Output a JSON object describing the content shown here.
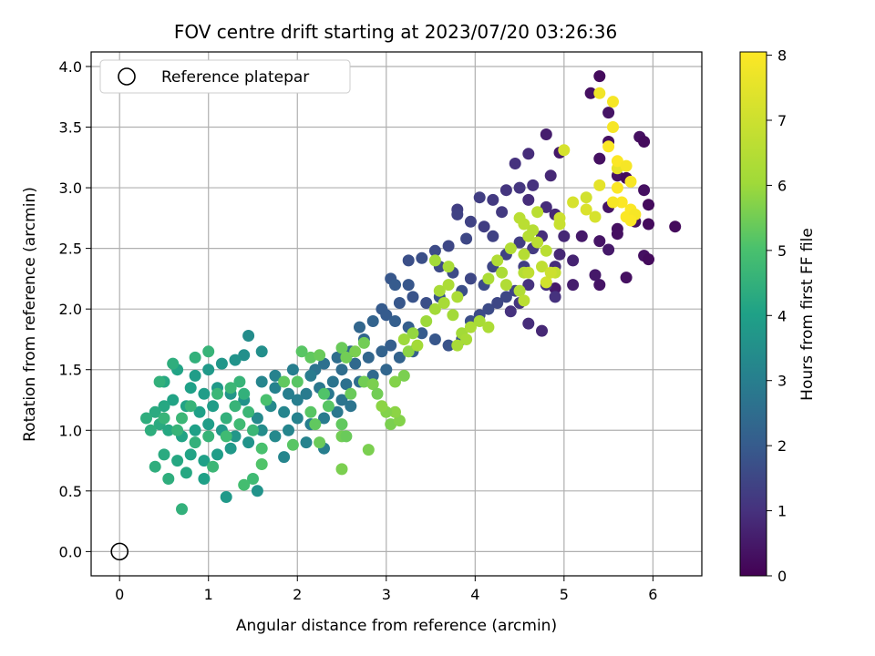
{
  "chart_data": {
    "type": "scatter",
    "title": "FOV centre drift starting at 2023/07/20 03:26:36",
    "xlabel": "Angular distance from reference (arcmin)",
    "ylabel": "Rotation from reference (arcmin)",
    "xlim": [
      -0.32,
      6.55
    ],
    "ylim": [
      -0.2,
      4.12
    ],
    "xticks": [
      "0",
      "1",
      "2",
      "3",
      "4",
      "5",
      "6"
    ],
    "yticks": [
      "0.0",
      "0.5",
      "1.0",
      "1.5",
      "2.0",
      "2.5",
      "3.0",
      "3.5",
      "4.0"
    ],
    "grid": true,
    "legend": {
      "placement": "top-left",
      "entries": [
        "Reference platepar"
      ]
    },
    "reference_point": {
      "x": 0,
      "y": 0
    },
    "colorbar": {
      "label": "Hours from first FF file",
      "colormap": "viridis",
      "range": [
        0,
        8.05
      ],
      "ticks": [
        "0",
        "1",
        "2",
        "3",
        "4",
        "5",
        "6",
        "7",
        "8"
      ]
    },
    "points": [
      [
        5.4,
        3.92,
        0.2
      ],
      [
        5.3,
        3.78,
        0.3
      ],
      [
        5.5,
        3.62,
        0.4
      ],
      [
        5.85,
        3.42,
        0.3
      ],
      [
        5.9,
        3.38,
        0.2
      ],
      [
        4.8,
        3.44,
        0.6
      ],
      [
        5.5,
        3.38,
        0.3
      ],
      [
        4.95,
        3.29,
        0.5
      ],
      [
        5.6,
        3.1,
        0.4
      ],
      [
        5.4,
        3.24,
        0.3
      ],
      [
        5.7,
        3.08,
        0.2
      ],
      [
        5.9,
        2.98,
        0.3
      ],
      [
        5.95,
        2.86,
        0.2
      ],
      [
        5.5,
        2.84,
        0.4
      ],
      [
        5.8,
        2.72,
        0.3
      ],
      [
        5.95,
        2.7,
        0.2
      ],
      [
        6.25,
        2.68,
        0.2
      ],
      [
        5.6,
        2.66,
        0.3
      ],
      [
        5.2,
        2.6,
        0.5
      ],
      [
        5.4,
        2.56,
        0.4
      ],
      [
        5.6,
        2.62,
        0.3
      ],
      [
        5.5,
        2.49,
        0.5
      ],
      [
        5.9,
        2.44,
        0.3
      ],
      [
        5.95,
        2.41,
        0.2
      ],
      [
        5.7,
        2.26,
        0.3
      ],
      [
        5.4,
        2.2,
        0.4
      ],
      [
        5.35,
        2.28,
        0.5
      ],
      [
        5.1,
        2.2,
        0.6
      ],
      [
        4.9,
        2.17,
        0.5
      ],
      [
        4.6,
        3.28,
        0.9
      ],
      [
        4.85,
        3.1,
        0.8
      ],
      [
        4.65,
        3.02,
        1.0
      ],
      [
        4.45,
        3.2,
        1.0
      ],
      [
        4.5,
        3.0,
        1.1
      ],
      [
        4.35,
        2.98,
        1.1
      ],
      [
        4.2,
        2.9,
        1.2
      ],
      [
        4.05,
        2.92,
        1.3
      ],
      [
        3.8,
        2.82,
        1.3
      ],
      [
        4.3,
        2.8,
        1.2
      ],
      [
        4.6,
        2.9,
        0.9
      ],
      [
        4.8,
        2.84,
        0.9
      ],
      [
        4.9,
        2.78,
        0.8
      ],
      [
        4.75,
        2.6,
        0.9
      ],
      [
        5.0,
        2.6,
        0.8
      ],
      [
        4.95,
        2.45,
        0.8
      ],
      [
        5.1,
        2.4,
        0.7
      ],
      [
        4.9,
        2.35,
        0.9
      ],
      [
        4.8,
        2.2,
        1.0
      ],
      [
        4.9,
        2.1,
        1.0
      ],
      [
        4.6,
        2.2,
        1.0
      ],
      [
        4.5,
        2.05,
        1.1
      ],
      [
        4.4,
        1.98,
        1.0
      ],
      [
        4.6,
        1.88,
        0.9
      ],
      [
        4.75,
        1.82,
        0.8
      ],
      [
        3.8,
        2.78,
        1.4
      ],
      [
        3.95,
        2.72,
        1.4
      ],
      [
        4.1,
        2.68,
        1.3
      ],
      [
        4.2,
        2.6,
        1.4
      ],
      [
        3.9,
        2.58,
        1.5
      ],
      [
        3.7,
        2.52,
        1.5
      ],
      [
        3.55,
        2.48,
        1.6
      ],
      [
        3.4,
        2.42,
        1.7
      ],
      [
        3.25,
        2.4,
        1.7
      ],
      [
        3.6,
        2.35,
        1.6
      ],
      [
        3.75,
        2.3,
        1.6
      ],
      [
        3.95,
        2.25,
        1.5
      ],
      [
        4.1,
        2.2,
        1.6
      ],
      [
        3.85,
        2.15,
        1.7
      ],
      [
        3.6,
        2.1,
        1.8
      ],
      [
        3.45,
        2.05,
        1.7
      ],
      [
        3.3,
        2.1,
        1.8
      ],
      [
        3.15,
        2.05,
        1.9
      ],
      [
        3.05,
        2.25,
        1.9
      ],
      [
        3.1,
        2.2,
        2.0
      ],
      [
        3.25,
        2.2,
        1.9
      ],
      [
        2.95,
        2.0,
        2.0
      ],
      [
        3.0,
        1.95,
        2.0
      ],
      [
        3.1,
        1.9,
        2.1
      ],
      [
        3.25,
        1.85,
        2.1
      ],
      [
        3.4,
        1.8,
        2.0
      ],
      [
        3.55,
        1.75,
        1.9
      ],
      [
        3.7,
        1.7,
        1.8
      ],
      [
        3.85,
        1.75,
        1.8
      ],
      [
        3.95,
        1.9,
        1.7
      ],
      [
        4.05,
        1.95,
        1.6
      ],
      [
        4.15,
        2.0,
        1.6
      ],
      [
        4.25,
        2.05,
        1.5
      ],
      [
        4.35,
        2.1,
        1.5
      ],
      [
        4.45,
        2.15,
        1.4
      ],
      [
        4.2,
        2.35,
        1.5
      ],
      [
        4.35,
        2.45,
        1.4
      ],
      [
        4.5,
        2.55,
        1.3
      ],
      [
        4.65,
        2.5,
        1.2
      ],
      [
        4.55,
        2.35,
        1.3
      ],
      [
        2.85,
        1.9,
        2.2
      ],
      [
        2.7,
        1.85,
        2.3
      ],
      [
        2.75,
        1.75,
        2.3
      ],
      [
        2.6,
        1.65,
        2.4
      ],
      [
        2.45,
        1.6,
        2.5
      ],
      [
        2.3,
        1.55,
        2.6
      ],
      [
        2.2,
        1.5,
        2.7
      ],
      [
        2.5,
        1.5,
        2.5
      ],
      [
        2.65,
        1.55,
        2.4
      ],
      [
        2.8,
        1.6,
        2.3
      ],
      [
        2.95,
        1.65,
        2.2
      ],
      [
        3.05,
        1.7,
        2.1
      ],
      [
        3.15,
        1.6,
        2.2
      ],
      [
        3.3,
        1.65,
        2.1
      ],
      [
        3.0,
        1.5,
        2.3
      ],
      [
        2.85,
        1.45,
        2.4
      ],
      [
        2.7,
        1.4,
        2.5
      ],
      [
        2.55,
        1.38,
        2.6
      ],
      [
        2.4,
        1.4,
        2.7
      ],
      [
        2.25,
        1.35,
        2.8
      ],
      [
        2.1,
        1.3,
        2.9
      ],
      [
        2.0,
        1.25,
        3.0
      ],
      [
        1.9,
        1.3,
        3.0
      ],
      [
        1.75,
        1.35,
        3.1
      ],
      [
        1.6,
        1.4,
        3.2
      ],
      [
        1.75,
        1.45,
        3.1
      ],
      [
        1.95,
        1.5,
        3.0
      ],
      [
        2.15,
        1.45,
        2.9
      ],
      [
        2.35,
        1.3,
        2.8
      ],
      [
        2.5,
        1.25,
        2.7
      ],
      [
        2.6,
        1.2,
        2.7
      ],
      [
        2.45,
        1.15,
        2.8
      ],
      [
        2.3,
        1.1,
        2.9
      ],
      [
        2.15,
        1.05,
        3.0
      ],
      [
        2.0,
        1.1,
        3.1
      ],
      [
        1.85,
        1.15,
        3.2
      ],
      [
        1.7,
        1.2,
        3.3
      ],
      [
        1.55,
        1.1,
        3.3
      ],
      [
        1.6,
        1.0,
        3.4
      ],
      [
        1.75,
        0.95,
        3.3
      ],
      [
        1.9,
        1.0,
        3.2
      ],
      [
        2.1,
        0.9,
        3.1
      ],
      [
        2.3,
        0.85,
        3.0
      ],
      [
        1.85,
        0.78,
        3.2
      ],
      [
        1.55,
        0.5,
        3.6
      ],
      [
        1.2,
        0.45,
        3.8
      ],
      [
        1.45,
        1.78,
        3.4
      ],
      [
        1.6,
        1.65,
        3.5
      ],
      [
        1.4,
        1.62,
        3.5
      ],
      [
        1.3,
        1.58,
        3.6
      ],
      [
        1.15,
        1.55,
        3.7
      ],
      [
        1.0,
        1.5,
        3.8
      ],
      [
        0.85,
        1.45,
        3.9
      ],
      [
        0.8,
        1.35,
        4.0
      ],
      [
        0.95,
        1.3,
        3.9
      ],
      [
        1.1,
        1.35,
        3.8
      ],
      [
        1.25,
        1.3,
        3.7
      ],
      [
        1.4,
        1.25,
        3.6
      ],
      [
        1.05,
        1.2,
        3.9
      ],
      [
        0.9,
        1.15,
        4.0
      ],
      [
        0.75,
        1.2,
        4.1
      ],
      [
        0.6,
        1.25,
        4.1
      ],
      [
        0.5,
        1.2,
        4.2
      ],
      [
        0.4,
        1.15,
        4.3
      ],
      [
        0.45,
        1.05,
        4.3
      ],
      [
        0.55,
        1.0,
        4.2
      ],
      [
        0.7,
        0.95,
        4.1
      ],
      [
        0.85,
        1.0,
        4.0
      ],
      [
        1.0,
        1.05,
        3.9
      ],
      [
        1.15,
        1.0,
        3.8
      ],
      [
        1.3,
        0.95,
        3.7
      ],
      [
        1.45,
        0.9,
        3.6
      ],
      [
        1.25,
        0.85,
        3.8
      ],
      [
        1.1,
        0.8,
        3.9
      ],
      [
        0.95,
        0.75,
        4.0
      ],
      [
        0.8,
        0.8,
        4.1
      ],
      [
        0.65,
        0.75,
        4.2
      ],
      [
        0.5,
        0.8,
        4.3
      ],
      [
        0.4,
        0.7,
        4.4
      ],
      [
        0.55,
        0.6,
        4.4
      ],
      [
        0.75,
        0.65,
        4.2
      ],
      [
        0.95,
        0.6,
        4.0
      ],
      [
        0.7,
        0.35,
        4.5
      ],
      [
        0.35,
        1.0,
        4.4
      ],
      [
        0.3,
        1.1,
        4.4
      ],
      [
        0.5,
        1.4,
        4.2
      ],
      [
        0.65,
        1.5,
        4.1
      ],
      [
        0.6,
        1.55,
        4.4
      ],
      [
        0.45,
        1.4,
        4.5
      ],
      [
        0.5,
        1.1,
        4.6
      ],
      [
        0.65,
        1.0,
        4.6
      ],
      [
        0.85,
        0.9,
        4.5
      ],
      [
        1.0,
        0.95,
        4.6
      ],
      [
        1.2,
        1.1,
        4.5
      ],
      [
        1.3,
        1.2,
        4.6
      ],
      [
        1.4,
        1.3,
        4.5
      ],
      [
        1.35,
        1.4,
        4.6
      ],
      [
        1.25,
        1.35,
        4.7
      ],
      [
        1.45,
        1.15,
        4.7
      ],
      [
        1.35,
        1.05,
        4.8
      ],
      [
        1.5,
        1.0,
        4.7
      ],
      [
        1.2,
        0.95,
        4.8
      ],
      [
        1.05,
        0.7,
        4.7
      ],
      [
        0.85,
        1.6,
        4.5
      ],
      [
        1.0,
        1.65,
        4.6
      ],
      [
        1.1,
        1.3,
        4.7
      ],
      [
        1.5,
        0.6,
        4.8
      ],
      [
        1.4,
        0.55,
        4.9
      ],
      [
        0.8,
        1.2,
        4.6
      ],
      [
        0.7,
        1.1,
        4.7
      ],
      [
        1.65,
        1.25,
        5.0
      ],
      [
        1.6,
        0.85,
        5.0
      ],
      [
        1.6,
        0.72,
        5.1
      ],
      [
        1.95,
        0.88,
        5.2
      ],
      [
        2.0,
        1.4,
        5.2
      ],
      [
        1.85,
        1.4,
        5.3
      ],
      [
        2.15,
        1.15,
        5.2
      ],
      [
        2.2,
        1.05,
        5.3
      ],
      [
        2.25,
        0.9,
        5.4
      ],
      [
        2.3,
        1.3,
        5.1
      ],
      [
        2.35,
        1.2,
        5.2
      ],
      [
        2.15,
        1.6,
        5.3
      ],
      [
        2.05,
        1.65,
        5.2
      ],
      [
        2.25,
        1.62,
        5.4
      ],
      [
        2.5,
        1.68,
        5.4
      ],
      [
        2.55,
        1.6,
        5.5
      ],
      [
        2.65,
        1.65,
        5.6
      ],
      [
        2.75,
        1.72,
        5.5
      ],
      [
        2.6,
        1.3,
        5.4
      ],
      [
        2.75,
        1.4,
        5.5
      ],
      [
        2.85,
        1.38,
        5.6
      ],
      [
        2.9,
        1.3,
        5.5
      ],
      [
        2.5,
        1.05,
        5.3
      ],
      [
        2.5,
        0.95,
        5.5
      ],
      [
        2.55,
        0.95,
        5.4
      ],
      [
        2.5,
        0.68,
        5.6
      ],
      [
        2.8,
        0.84,
        5.6
      ],
      [
        3.05,
        1.05,
        5.6
      ],
      [
        3.15,
        1.08,
        5.7
      ],
      [
        3.1,
        1.15,
        5.8
      ],
      [
        3.0,
        1.15,
        5.7
      ],
      [
        3.2,
        1.45,
        5.6
      ],
      [
        3.1,
        1.4,
        5.7
      ],
      [
        2.95,
        1.2,
        5.8
      ],
      [
        3.25,
        1.65,
        5.8
      ],
      [
        3.3,
        1.8,
        5.9
      ],
      [
        3.45,
        1.9,
        6.0
      ],
      [
        3.55,
        2.0,
        6.1
      ],
      [
        3.65,
        2.05,
        6.2
      ],
      [
        3.75,
        1.95,
        6.1
      ],
      [
        3.85,
        1.8,
        6.1
      ],
      [
        3.9,
        1.75,
        6.2
      ],
      [
        3.95,
        1.85,
        6.3
      ],
      [
        4.05,
        1.9,
        6.2
      ],
      [
        4.15,
        1.85,
        6.3
      ],
      [
        3.6,
        2.15,
        6.2
      ],
      [
        3.7,
        2.2,
        6.3
      ],
      [
        3.8,
        2.1,
        6.3
      ],
      [
        3.55,
        2.4,
        6.1
      ],
      [
        3.7,
        2.35,
        6.2
      ],
      [
        4.15,
        2.25,
        6.3
      ],
      [
        4.25,
        2.4,
        6.4
      ],
      [
        4.3,
        2.3,
        6.3
      ],
      [
        4.35,
        2.2,
        6.4
      ],
      [
        4.5,
        2.15,
        6.4
      ],
      [
        4.55,
        2.3,
        6.5
      ],
      [
        4.4,
        2.5,
        6.4
      ],
      [
        4.55,
        2.45,
        6.5
      ],
      [
        4.6,
        2.6,
        6.5
      ],
      [
        4.7,
        2.55,
        6.6
      ],
      [
        4.55,
        2.7,
        6.6
      ],
      [
        4.65,
        2.65,
        6.5
      ],
      [
        4.5,
        2.75,
        6.6
      ],
      [
        4.7,
        2.8,
        6.6
      ],
      [
        4.8,
        2.48,
        6.6
      ],
      [
        4.75,
        2.35,
        6.7
      ],
      [
        4.6,
        2.3,
        6.7
      ],
      [
        4.9,
        2.3,
        6.8
      ],
      [
        4.55,
        2.07,
        6.6
      ],
      [
        3.8,
        1.7,
        6.2
      ],
      [
        3.35,
        1.7,
        6.1
      ],
      [
        3.2,
        1.75,
        6.0
      ],
      [
        4.95,
        2.75,
        7.0
      ],
      [
        4.95,
        2.7,
        6.9
      ],
      [
        5.0,
        3.31,
        7.2
      ],
      [
        5.1,
        2.88,
        7.2
      ],
      [
        5.25,
        2.92,
        7.1
      ],
      [
        5.25,
        2.82,
        7.3
      ],
      [
        5.35,
        2.76,
        7.2
      ],
      [
        4.8,
        2.22,
        7.1
      ],
      [
        4.85,
        2.3,
        7.0
      ],
      [
        5.4,
        3.02,
        7.5
      ],
      [
        5.6,
        3.16,
        7.6
      ],
      [
        5.4,
        3.78,
        7.8
      ],
      [
        5.55,
        3.71,
        7.9
      ],
      [
        5.55,
        3.5,
        7.9
      ],
      [
        5.5,
        3.34,
        8.0
      ],
      [
        5.6,
        3.22,
        8.0
      ],
      [
        5.7,
        3.18,
        7.9
      ],
      [
        5.6,
        3.0,
        8.0
      ],
      [
        5.75,
        3.05,
        7.9
      ],
      [
        5.65,
        2.88,
        8.0
      ],
      [
        5.75,
        2.82,
        8.0
      ],
      [
        5.55,
        2.88,
        7.9
      ],
      [
        5.7,
        2.76,
        8.0
      ],
      [
        5.8,
        2.78,
        7.9
      ],
      [
        5.75,
        2.73,
        8.0
      ]
    ]
  }
}
